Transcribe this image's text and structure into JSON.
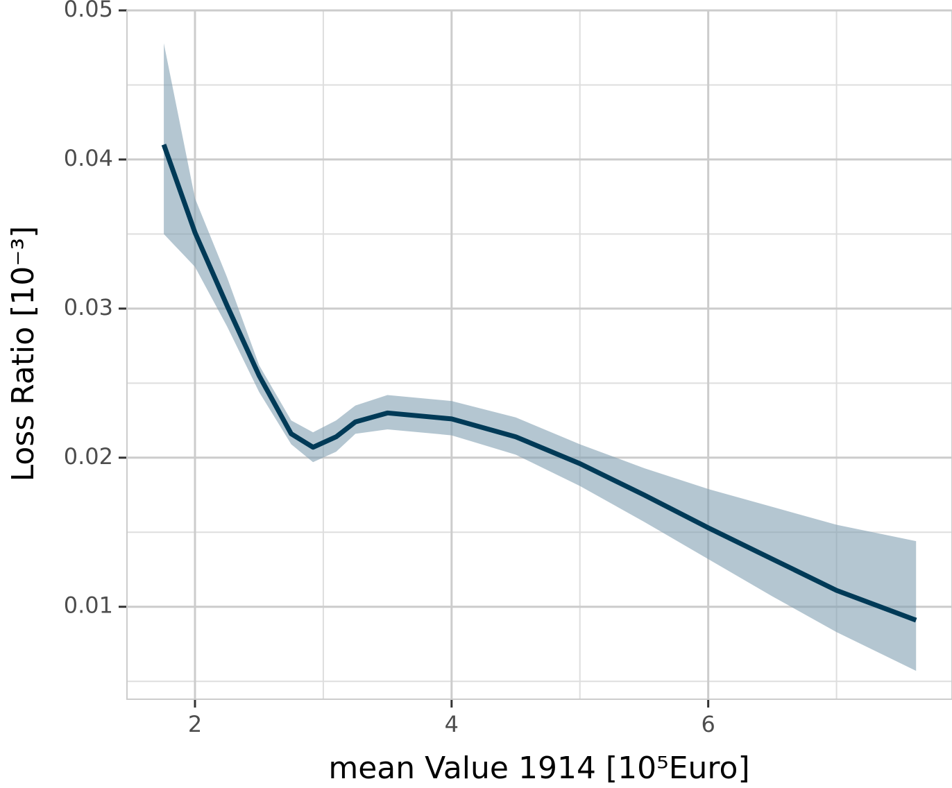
{
  "chart_data": {
    "type": "line",
    "xlabel": "mean Value 1914  [10⁵Euro]",
    "ylabel": "Loss Ratio [10⁻³]",
    "x": [
      1.757,
      2.0,
      2.25,
      2.5,
      2.75,
      2.92,
      3.1,
      3.25,
      3.5,
      4.0,
      4.5,
      5.0,
      5.5,
      6.0,
      6.5,
      7.0,
      7.62
    ],
    "values": [
      0.041,
      0.0351,
      0.0302,
      0.0255,
      0.0216,
      0.0207,
      0.0214,
      0.0224,
      0.023,
      0.0226,
      0.0214,
      0.0196,
      0.0175,
      0.0153,
      0.0132,
      0.0111,
      0.0091
    ],
    "upper": [
      0.0478,
      0.0374,
      0.0321,
      0.0262,
      0.0225,
      0.0217,
      0.0225,
      0.0235,
      0.0242,
      0.0238,
      0.0227,
      0.0209,
      0.0193,
      0.0179,
      0.0167,
      0.0155,
      0.0144
    ],
    "lower": [
      0.035,
      0.0328,
      0.0288,
      0.0244,
      0.0209,
      0.0197,
      0.0204,
      0.0216,
      0.0219,
      0.0215,
      0.0202,
      0.0181,
      0.0157,
      0.0132,
      0.0107,
      0.0083,
      0.0057
    ],
    "color": "#003a57",
    "band_color": "#7d9cb0",
    "xlim": [
      1.47,
      7.9
    ],
    "ylim": [
      0.0038,
      0.05
    ],
    "xticks": [
      2,
      4,
      6
    ],
    "yticks": [
      0.01,
      0.02,
      0.03,
      0.04,
      0.05
    ],
    "xminor": [
      3,
      5,
      7
    ],
    "yminor": [
      0.005,
      0.015,
      0.025,
      0.035,
      0.045
    ],
    "grid": true
  }
}
